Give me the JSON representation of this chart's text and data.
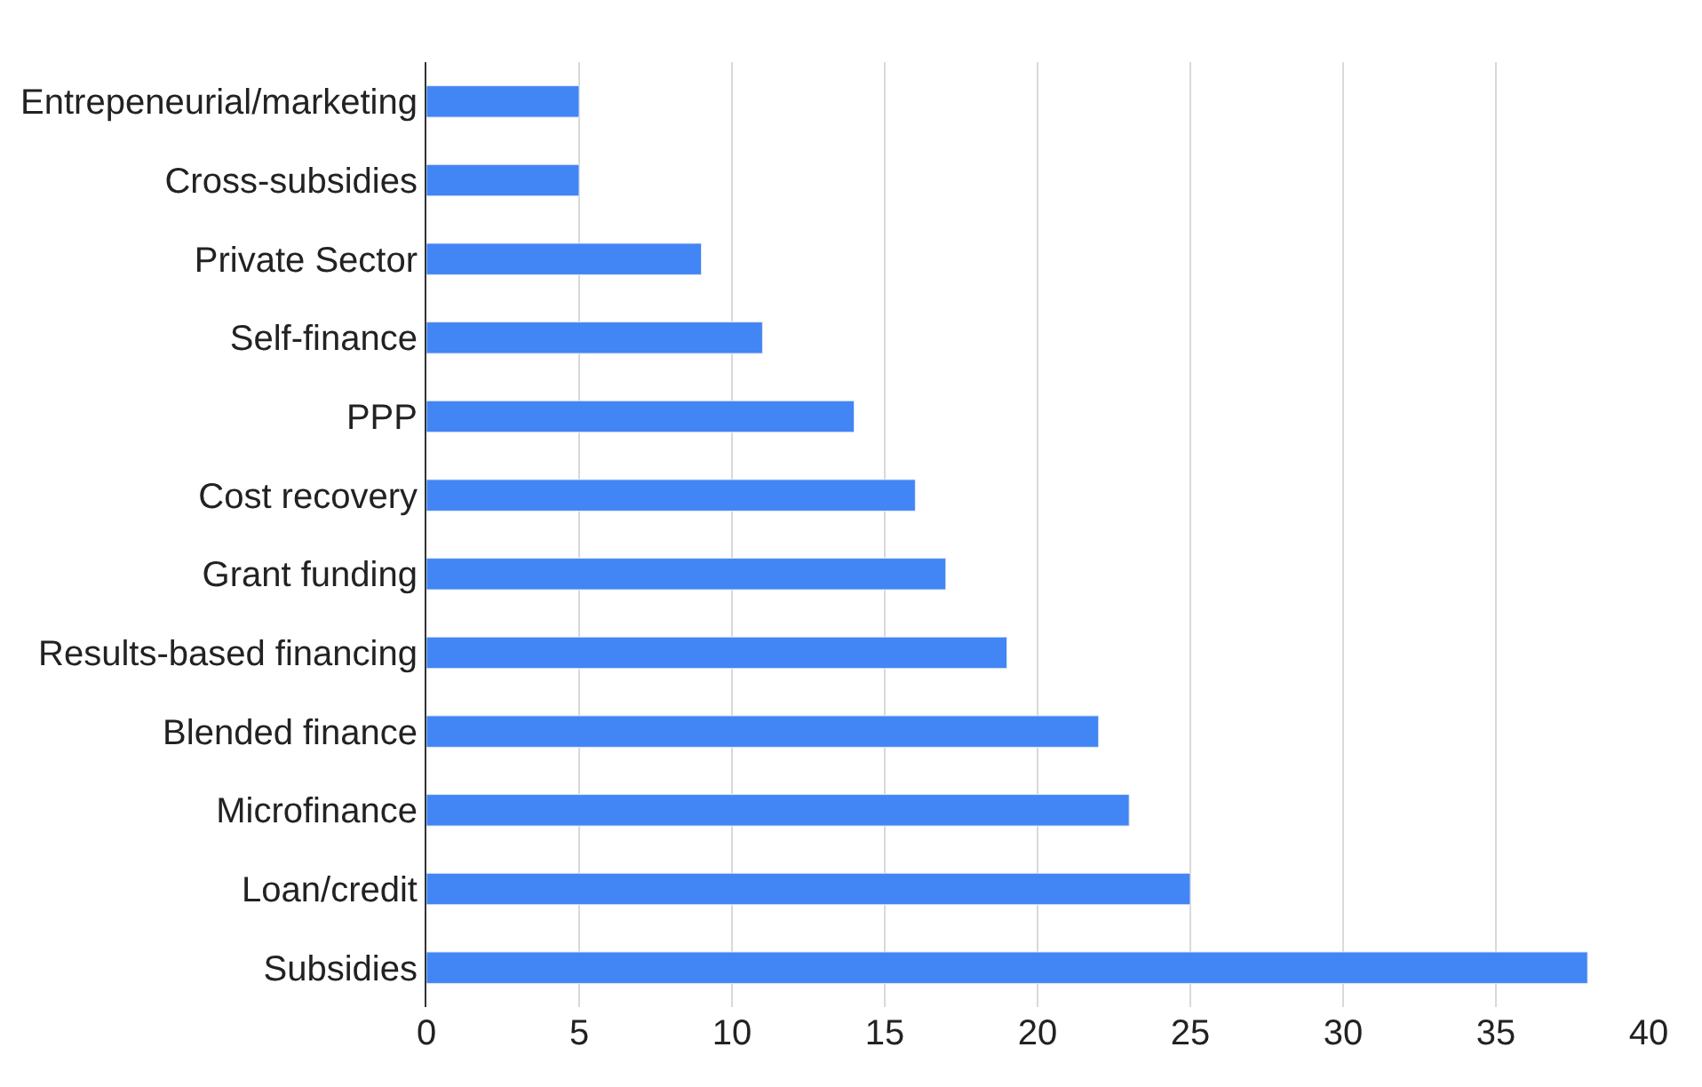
{
  "chart_data": {
    "type": "bar",
    "orientation": "horizontal",
    "categories": [
      "Entrepeneurial/marketing",
      "Cross-subsidies",
      "Private Sector",
      "Self-finance",
      "PPP",
      "Cost recovery",
      "Grant funding",
      "Results-based financing",
      "Blended finance",
      "Microfinance",
      "Loan/credit",
      "Subsidies"
    ],
    "values": [
      5,
      5,
      9,
      11,
      14,
      16,
      17,
      19,
      22,
      23,
      25,
      38
    ],
    "color": "#4285f4",
    "xlim": [
      0,
      40
    ],
    "xticks": [
      0,
      5,
      10,
      15,
      20,
      25,
      30,
      35,
      40
    ],
    "grid": "x"
  }
}
